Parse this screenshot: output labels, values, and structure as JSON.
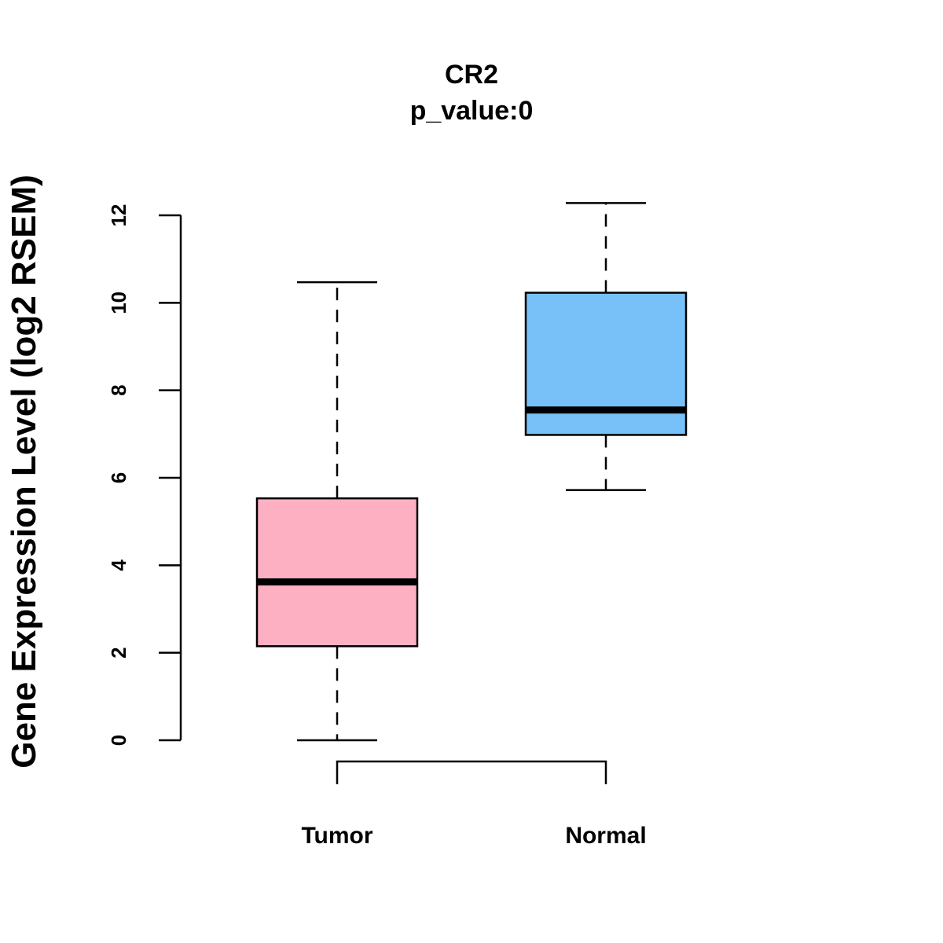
{
  "chart_data": {
    "type": "boxplot",
    "title": "CR2",
    "subtitle": "p_value:0",
    "xlabel": "",
    "ylabel": "Gene Expression Level (log2 RSEM)",
    "ylim": [
      0,
      12
    ],
    "yticks": [
      0,
      2,
      4,
      6,
      8,
      10,
      12
    ],
    "grid": false,
    "categories": [
      "Tumor",
      "Normal"
    ],
    "boxes": [
      {
        "name": "Tumor",
        "min": 0.0,
        "q1": 2.15,
        "median": 3.62,
        "q3": 5.53,
        "max": 10.47,
        "color": "#FDB0C2"
      },
      {
        "name": "Normal",
        "min": 5.72,
        "q1": 6.98,
        "median": 7.55,
        "q3": 10.23,
        "max": 12.28,
        "color": "#77C1F8"
      }
    ],
    "comparison_bracket": [
      "Tumor",
      "Normal"
    ]
  }
}
